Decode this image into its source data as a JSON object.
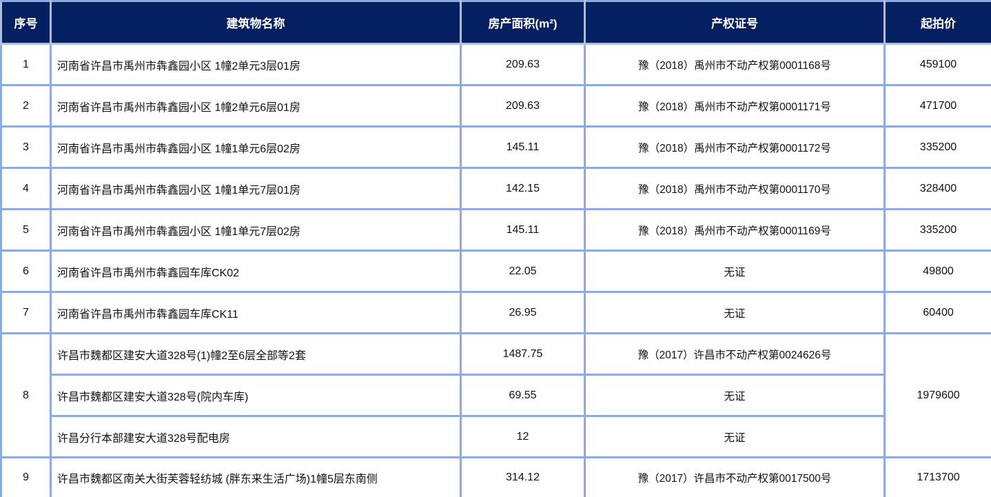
{
  "table": {
    "columns": [
      {
        "key": "serial",
        "label": "序号"
      },
      {
        "key": "name",
        "label": "建筑物名称"
      },
      {
        "key": "area",
        "label": "房产面积(m²)"
      },
      {
        "key": "cert",
        "label": "产权证号"
      },
      {
        "key": "price",
        "label": "起拍价"
      }
    ],
    "items": [
      {
        "no": "1",
        "price": "459100",
        "properties": [
          {
            "name": "河南省许昌市禹州市犇鑫园小区 1幢2单元3层01房",
            "area": "209.63",
            "cert": "豫（2018）禹州市不动产权第0001168号"
          }
        ]
      },
      {
        "no": "2",
        "price": "471700",
        "properties": [
          {
            "name": "河南省许昌市禹州市犇鑫园小区 1幢2单元6层01房",
            "area": "209.63",
            "cert": "豫（2018）禹州市不动产权第0001171号"
          }
        ]
      },
      {
        "no": "3",
        "price": "335200",
        "properties": [
          {
            "name": "河南省许昌市禹州市犇鑫园小区 1幢1单元6层02房",
            "area": "145.11",
            "cert": "豫（2018）禹州市不动产权第0001172号"
          }
        ]
      },
      {
        "no": "4",
        "price": "328400",
        "properties": [
          {
            "name": "河南省许昌市禹州市犇鑫园小区 1幢1单元7层01房",
            "area": "142.15",
            "cert": "豫（2018）禹州市不动产权第0001170号"
          }
        ]
      },
      {
        "no": "5",
        "price": "335200",
        "properties": [
          {
            "name": "河南省许昌市禹州市犇鑫园小区 1幢1单元7层02房",
            "area": "145.11",
            "cert": "豫（2018）禹州市不动产权第0001169号"
          }
        ]
      },
      {
        "no": "6",
        "price": "49800",
        "properties": [
          {
            "name": "河南省许昌市禹州市犇鑫园车库CK02",
            "area": "22.05",
            "cert": "无证"
          }
        ]
      },
      {
        "no": "7",
        "price": "60400",
        "properties": [
          {
            "name": "河南省许昌市禹州市犇鑫园车库CK11",
            "area": "26.95",
            "cert": "无证"
          }
        ]
      },
      {
        "no": "8",
        "price": "1979600",
        "properties": [
          {
            "name": "许昌市魏都区建安大道328号(1)幢2至6层全部等2套",
            "area": "1487.75",
            "cert": "豫（2017）许昌市不动产权第0024626号"
          },
          {
            "name": "许昌市魏都区建安大道328号(院内车库)",
            "area": "69.55",
            "cert": "无证"
          },
          {
            "name": "许昌分行本部建安大道328号配电房",
            "area": "12",
            "cert": "无证"
          }
        ]
      },
      {
        "no": "9",
        "price": "1713700",
        "properties": [
          {
            "name": "许昌市魏都区南关大街芙蓉轻纺城 (胖东来生活广场)1幢5层东南侧",
            "area": "314.12",
            "cert": "豫（2017）许昌市不动产权第0017500号"
          }
        ]
      }
    ],
    "colors": {
      "header_bg": "#042061",
      "header_text": "#ffffff",
      "grid": "#8ea9db",
      "body_text": "#111111",
      "outer_bottom": "#0b2a63"
    }
  }
}
